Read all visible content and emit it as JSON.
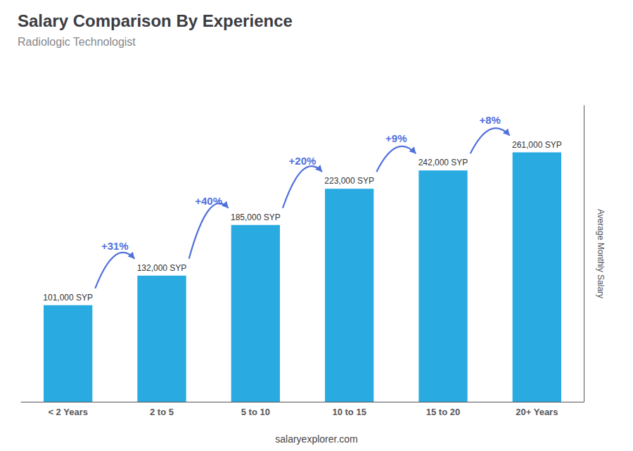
{
  "chart_data": {
    "type": "bar",
    "title": "Salary Comparison By Experience",
    "subtitle": "Radiologic Technologist",
    "ylabel": "Average Monthly Salary",
    "categories": [
      "< 2 Years",
      "2 to 5",
      "5 to 10",
      "10 to 15",
      "15 to 20",
      "20+ Years"
    ],
    "values": [
      101000,
      132000,
      185000,
      223000,
      242000,
      261000
    ],
    "value_labels": [
      "101,000 SYP",
      "132,000 SYP",
      "185,000 SYP",
      "223,000 SYP",
      "242,000 SYP",
      "261,000 SYP"
    ],
    "data_labels": true,
    "color": "#29ABE2",
    "ylim": [
      0,
      310000
    ],
    "annotations": [
      "+31%",
      "+40%",
      "+20%",
      "+9%",
      "+8%"
    ],
    "footer": "salaryexplorer.com",
    "grid": false,
    "tick_labels": "x"
  }
}
